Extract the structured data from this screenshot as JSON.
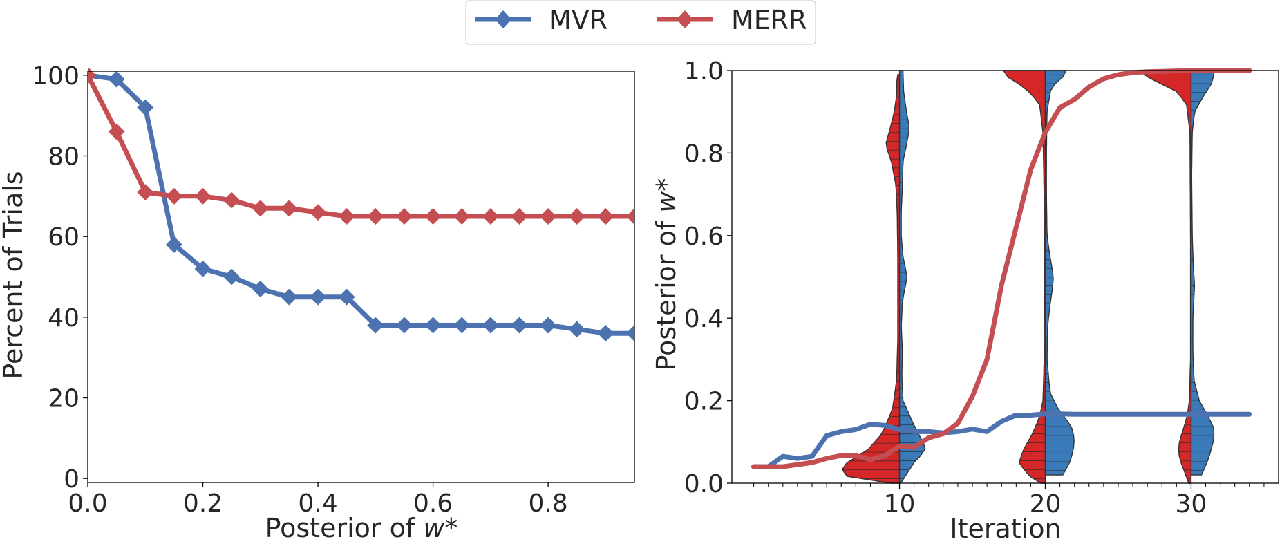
{
  "legend": {
    "placement": "top-center",
    "entries": [
      {
        "name": "MVR",
        "color": "#4c72b0",
        "marker": "diamond"
      },
      {
        "name": "MERR",
        "color": "#c44e52",
        "marker": "diamond"
      }
    ]
  },
  "colors": {
    "mvr": "#4c72b0",
    "merr": "#c44e52",
    "violin_red": "#d62728",
    "violin_blue": "#3a7ab8",
    "outline": "#333333"
  },
  "chart_data": [
    {
      "type": "line",
      "xlabel_prefix": "Posterior of ",
      "xlabel_var": "w",
      "xlabel_suffix": "*",
      "ylabel": "Percent of Trials",
      "xlim": [
        0.0,
        0.95
      ],
      "ylim": [
        -1,
        101
      ],
      "xticks": [
        0.0,
        0.2,
        0.4,
        0.6,
        0.8
      ],
      "xtick_labels": [
        "0.0",
        "0.2",
        "0.4",
        "0.6",
        "0.8"
      ],
      "yticks": [
        0,
        20,
        40,
        60,
        80,
        100
      ],
      "ytick_labels": [
        "0",
        "20",
        "40",
        "60",
        "80",
        "100"
      ],
      "grid": false,
      "x": [
        0.0,
        0.05,
        0.1,
        0.15,
        0.2,
        0.25,
        0.3,
        0.35,
        0.4,
        0.45,
        0.5,
        0.55,
        0.6,
        0.65,
        0.7,
        0.75,
        0.8,
        0.85,
        0.9,
        0.95
      ],
      "series": [
        {
          "name": "MVR",
          "color": "#4c72b0",
          "marker": "diamond",
          "values": [
            100,
            99,
            92,
            58,
            52,
            50,
            47,
            45,
            45,
            45,
            38,
            38,
            38,
            38,
            38,
            38,
            38,
            37,
            36,
            36
          ]
        },
        {
          "name": "MERR",
          "color": "#c44e52",
          "marker": "diamond",
          "values": [
            100,
            86,
            71,
            70,
            70,
            69,
            67,
            67,
            66,
            65,
            65,
            65,
            65,
            65,
            65,
            65,
            65,
            65,
            65,
            65
          ]
        }
      ]
    },
    {
      "type": "violin+line",
      "xlabel": "Iteration",
      "ylabel_prefix": "Posterior of ",
      "ylabel_var": "w",
      "ylabel_suffix": "*",
      "xlim": [
        -1.5,
        36
      ],
      "ylim": [
        0.0,
        1.0
      ],
      "xticks": [
        10,
        20,
        30
      ],
      "xtick_labels": [
        "10",
        "20",
        "30"
      ],
      "minor_xticks": [
        0,
        1,
        2,
        3,
        4,
        5,
        6,
        7,
        8,
        9,
        11,
        12,
        13,
        14,
        15,
        16,
        17,
        18,
        19,
        21,
        22,
        23,
        24,
        25,
        26,
        27,
        28,
        29,
        31,
        32,
        33,
        34,
        35
      ],
      "yticks": [
        0.0,
        0.2,
        0.4,
        0.6,
        0.8,
        1.0
      ],
      "ytick_labels": [
        "0.0",
        "0.2",
        "0.4",
        "0.6",
        "0.8",
        "1.0"
      ],
      "grid": false,
      "violins": [
        {
          "iteration": 10,
          "merr": {
            "ymin": 0.0,
            "ymax": 0.99,
            "half_width": 4.0,
            "profile": [
              [
                0.0,
                0.15
              ],
              [
                0.01,
                0.85
              ],
              [
                0.03,
                1.0
              ],
              [
                0.05,
                0.9
              ],
              [
                0.08,
                0.55
              ],
              [
                0.12,
                0.3
              ],
              [
                0.18,
                0.12
              ],
              [
                0.25,
                0.05
              ],
              [
                0.35,
                0.03
              ],
              [
                0.45,
                0.03
              ],
              [
                0.55,
                0.03
              ],
              [
                0.65,
                0.04
              ],
              [
                0.72,
                0.06
              ],
              [
                0.78,
                0.14
              ],
              [
                0.82,
                0.24
              ],
              [
                0.86,
                0.16
              ],
              [
                0.9,
                0.09
              ],
              [
                0.94,
                0.05
              ],
              [
                0.97,
                0.05
              ],
              [
                0.99,
                0.03
              ]
            ]
          },
          "mvr": {
            "ymin": 0.0,
            "ymax": 1.0,
            "half_width": 4.0,
            "profile": [
              [
                0.0,
                0.02
              ],
              [
                0.05,
                0.25
              ],
              [
                0.08,
                0.45
              ],
              [
                0.1,
                0.4
              ],
              [
                0.14,
                0.25
              ],
              [
                0.2,
                0.06
              ],
              [
                0.26,
                0.04
              ],
              [
                0.32,
                0.05
              ],
              [
                0.38,
                0.03
              ],
              [
                0.44,
                0.05
              ],
              [
                0.5,
                0.13
              ],
              [
                0.55,
                0.06
              ],
              [
                0.6,
                0.03
              ],
              [
                0.66,
                0.03
              ],
              [
                0.72,
                0.05
              ],
              [
                0.78,
                0.06
              ],
              [
                0.82,
                0.12
              ],
              [
                0.86,
                0.17
              ],
              [
                0.9,
                0.12
              ],
              [
                0.95,
                0.07
              ],
              [
                1.0,
                0.06
              ]
            ]
          }
        },
        {
          "iteration": 20,
          "merr": {
            "ymin": 0.0,
            "ymax": 1.0,
            "half_width": 4.0,
            "profile": [
              [
                0.0,
                0.08
              ],
              [
                0.02,
                0.3
              ],
              [
                0.05,
                0.45
              ],
              [
                0.08,
                0.38
              ],
              [
                0.12,
                0.22
              ],
              [
                0.16,
                0.1
              ],
              [
                0.2,
                0.04
              ],
              [
                0.3,
                0.02
              ],
              [
                0.5,
                0.02
              ],
              [
                0.7,
                0.02
              ],
              [
                0.85,
                0.04
              ],
              [
                0.92,
                0.1
              ],
              [
                0.96,
                0.36
              ],
              [
                0.98,
                0.62
              ],
              [
                1.0,
                0.72
              ]
            ]
          },
          "mvr": {
            "ymin": 0.02,
            "ymax": 1.0,
            "half_width": 4.0,
            "profile": [
              [
                0.02,
                0.3
              ],
              [
                0.05,
                0.42
              ],
              [
                0.08,
                0.48
              ],
              [
                0.11,
                0.5
              ],
              [
                0.14,
                0.44
              ],
              [
                0.18,
                0.22
              ],
              [
                0.22,
                0.08
              ],
              [
                0.3,
                0.03
              ],
              [
                0.38,
                0.04
              ],
              [
                0.43,
                0.08
              ],
              [
                0.47,
                0.12
              ],
              [
                0.5,
                0.14
              ],
              [
                0.55,
                0.08
              ],
              [
                0.6,
                0.03
              ],
              [
                0.7,
                0.02
              ],
              [
                0.8,
                0.02
              ],
              [
                0.9,
                0.03
              ],
              [
                0.96,
                0.1
              ],
              [
                0.98,
                0.28
              ],
              [
                1.0,
                0.36
              ]
            ]
          }
        },
        {
          "iteration": 30,
          "merr": {
            "ymin": 0.0,
            "ymax": 1.0,
            "half_width": 4.0,
            "profile": [
              [
                0.0,
                0.04
              ],
              [
                0.03,
                0.12
              ],
              [
                0.06,
                0.2
              ],
              [
                0.09,
                0.22
              ],
              [
                0.12,
                0.16
              ],
              [
                0.16,
                0.07
              ],
              [
                0.2,
                0.03
              ],
              [
                0.3,
                0.01
              ],
              [
                0.6,
                0.01
              ],
              [
                0.85,
                0.02
              ],
              [
                0.92,
                0.08
              ],
              [
                0.95,
                0.26
              ],
              [
                0.98,
                0.7
              ],
              [
                1.0,
                0.9
              ]
            ]
          },
          "mvr": {
            "ymin": 0.02,
            "ymax": 1.0,
            "half_width": 4.0,
            "profile": [
              [
                0.02,
                0.18
              ],
              [
                0.06,
                0.3
              ],
              [
                0.1,
                0.38
              ],
              [
                0.13,
                0.4
              ],
              [
                0.16,
                0.3
              ],
              [
                0.2,
                0.14
              ],
              [
                0.25,
                0.05
              ],
              [
                0.32,
                0.03
              ],
              [
                0.4,
                0.03
              ],
              [
                0.48,
                0.06
              ],
              [
                0.52,
                0.04
              ],
              [
                0.6,
                0.02
              ],
              [
                0.75,
                0.01
              ],
              [
                0.85,
                0.02
              ],
              [
                0.9,
                0.06
              ],
              [
                0.94,
                0.22
              ],
              [
                0.97,
                0.36
              ],
              [
                1.0,
                0.4
              ]
            ]
          }
        }
      ],
      "series": [
        {
          "name": "MVR",
          "color": "#4c72b0",
          "x": [
            0,
            1,
            2,
            3,
            4,
            5,
            6,
            7,
            8,
            9,
            10,
            11,
            12,
            13,
            14,
            15,
            16,
            17,
            18,
            19,
            20,
            21,
            22,
            23,
            24,
            25,
            26,
            27,
            28,
            29,
            30,
            31,
            32,
            33,
            34
          ],
          "values": [
            0.04,
            0.04,
            0.065,
            0.06,
            0.065,
            0.115,
            0.125,
            0.13,
            0.143,
            0.14,
            0.13,
            0.125,
            0.125,
            0.122,
            0.125,
            0.131,
            0.125,
            0.15,
            0.165,
            0.165,
            0.168,
            0.168,
            0.167,
            0.167,
            0.167,
            0.167,
            0.167,
            0.167,
            0.167,
            0.167,
            0.167,
            0.167,
            0.167,
            0.167,
            0.167
          ]
        },
        {
          "name": "MERR",
          "color": "#c44e52",
          "x": [
            0,
            1,
            2,
            3,
            4,
            5,
            6,
            7,
            8,
            9,
            10,
            11,
            12,
            13,
            14,
            15,
            16,
            17,
            18,
            19,
            20,
            21,
            22,
            23,
            24,
            25,
            26,
            27,
            28,
            29,
            30,
            31,
            32,
            33,
            34
          ],
          "values": [
            0.04,
            0.04,
            0.04,
            0.045,
            0.05,
            0.06,
            0.067,
            0.067,
            0.057,
            0.067,
            0.09,
            0.087,
            0.11,
            0.12,
            0.145,
            0.21,
            0.3,
            0.48,
            0.62,
            0.76,
            0.85,
            0.91,
            0.93,
            0.96,
            0.98,
            0.99,
            0.995,
            0.997,
            0.998,
            0.999,
            1.0,
            1.0,
            1.0,
            1.0,
            1.0
          ]
        }
      ]
    }
  ]
}
